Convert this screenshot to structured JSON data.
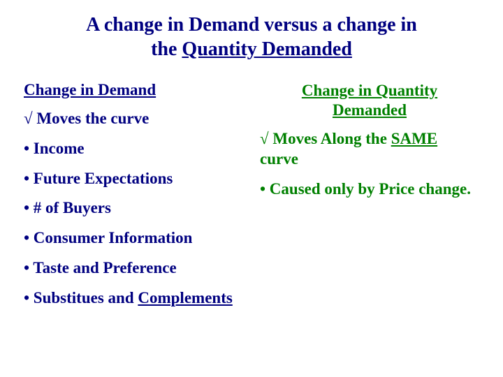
{
  "colors": {
    "navy": "#000080",
    "green": "#008000",
    "background": "#ffffff"
  },
  "typography": {
    "font_family": "Times New Roman",
    "title_fontsize": 28,
    "body_fontsize": 23,
    "all_bold": true
  },
  "title": {
    "line1": "A change in Demand versus a change in",
    "line2_prefix": "the ",
    "line2_underlined": "Quantity Demanded"
  },
  "left": {
    "heading": "Change in Demand",
    "moves": "√ Moves the curve",
    "bullets": {
      "income": "• Income",
      "future": "• Future Expectations",
      "buyers": "• # of Buyers",
      "consumer": "• Consumer Information",
      "taste": "• Taste and Preference",
      "subs_prefix": "• Substitues and ",
      "subs_underlined": "Complements"
    }
  },
  "right": {
    "heading_l1": "Change in Quantity",
    "heading_l2": "Demanded",
    "moves_prefix": "√ Moves Along the ",
    "moves_same": "SAME",
    "moves_suffix": " curve",
    "cause": "• Caused only by Price change."
  }
}
